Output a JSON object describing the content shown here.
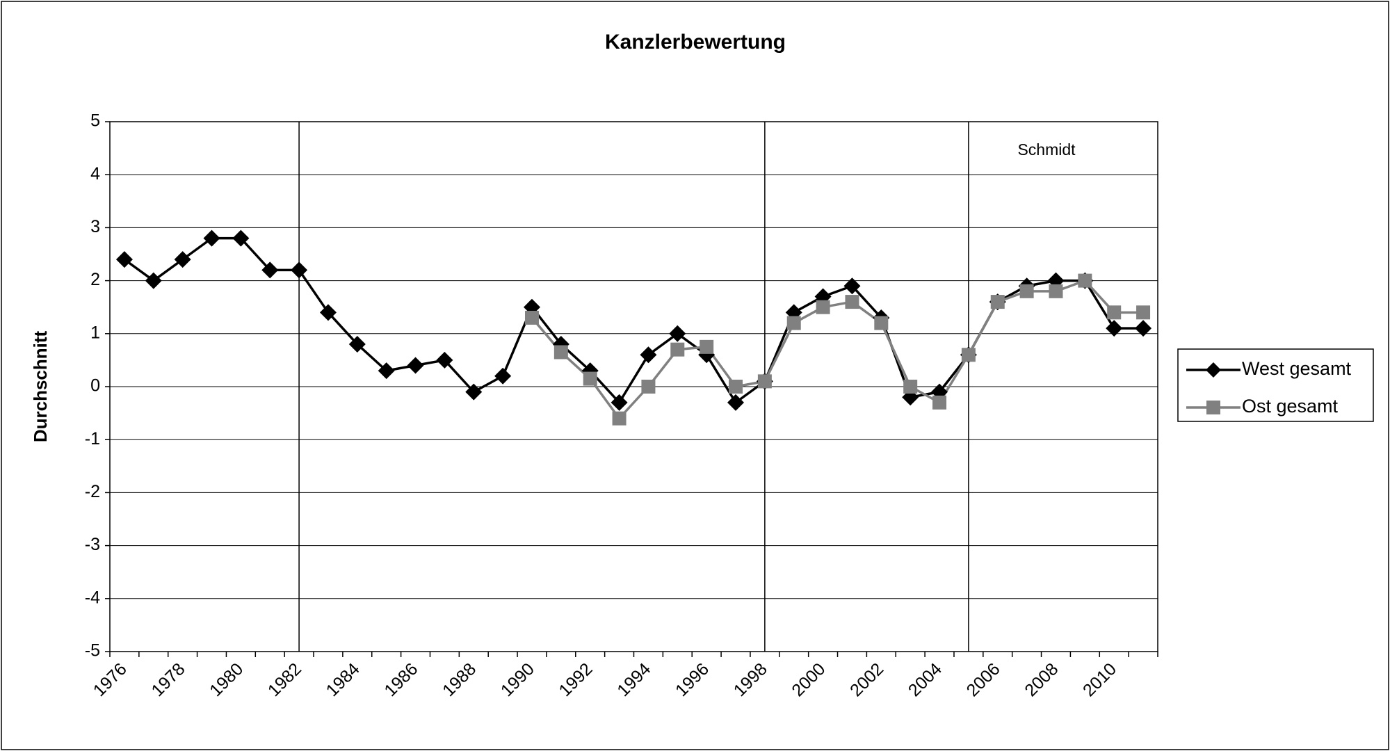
{
  "chart_data": {
    "type": "line",
    "title": "Kanzlerbewertung",
    "y_label": "Durchschnitt",
    "categories": [
      "1976",
      null,
      "1978",
      null,
      "1980",
      null,
      "1982",
      null,
      "1984",
      null,
      "1986",
      null,
      "1988",
      null,
      "1990",
      null,
      "1992",
      null,
      "1994",
      null,
      "1996",
      null,
      "1998",
      null,
      "2000",
      null,
      "2002",
      null,
      "2004",
      null,
      "2006",
      null,
      "2008",
      null,
      "2010",
      null
    ],
    "series": [
      {
        "name": "West gesamt",
        "color": "#000000",
        "marker": "diamond",
        "values": [
          2.4,
          2.0,
          2.4,
          2.8,
          2.8,
          2.2,
          2.2,
          1.4,
          0.8,
          0.3,
          0.4,
          0.5,
          -0.1,
          0.2,
          1.5,
          0.8,
          0.3,
          -0.3,
          0.6,
          1.0,
          0.6,
          -0.3,
          0.1,
          1.4,
          1.7,
          1.9,
          1.3,
          -0.2,
          -0.1,
          0.6,
          1.6,
          1.9,
          2.0,
          2.0,
          1.1,
          1.1
        ]
      },
      {
        "name": "Ost gesamt",
        "color": "#808080",
        "marker": "square",
        "values": [
          null,
          null,
          null,
          null,
          null,
          null,
          null,
          null,
          null,
          null,
          null,
          null,
          null,
          null,
          1.3,
          0.65,
          0.15,
          -0.6,
          0.0,
          0.7,
          0.75,
          0.0,
          0.1,
          1.2,
          1.5,
          1.6,
          1.2,
          0.0,
          -0.3,
          0.6,
          1.6,
          1.8,
          1.8,
          2.0,
          1.4,
          1.4
        ]
      }
    ],
    "annotations": [
      "Schmidt"
    ],
    "ylim": [
      -5,
      5
    ],
    "yticks": [
      -5,
      -4,
      -3,
      -2,
      -1,
      0,
      1,
      2,
      3,
      4,
      5
    ],
    "grid": true,
    "legend": "right"
  }
}
